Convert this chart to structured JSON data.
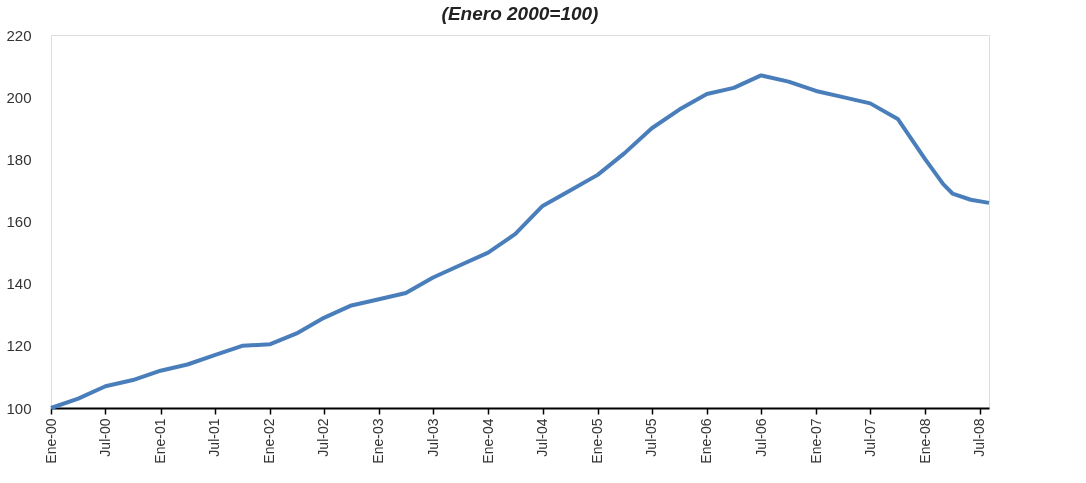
{
  "chart_data": {
    "type": "line",
    "title": "(Enero 2000=100)",
    "x": [
      "2000-01",
      "2000-04",
      "2000-07",
      "2000-10",
      "2001-01",
      "2001-04",
      "2001-07",
      "2001-10",
      "2002-01",
      "2002-04",
      "2002-07",
      "2002-10",
      "2003-01",
      "2003-04",
      "2003-07",
      "2003-10",
      "2004-01",
      "2004-04",
      "2004-07",
      "2004-10",
      "2005-01",
      "2005-04",
      "2005-07",
      "2005-10",
      "2006-01",
      "2006-04",
      "2006-07",
      "2006-10",
      "2007-01",
      "2007-04",
      "2007-07",
      "2007-10",
      "2008-01",
      "2008-03",
      "2008-04",
      "2008-06",
      "2008-08"
    ],
    "series": [
      {
        "color": "#4a7ebb",
        "values": [
          100,
          103,
          107,
          109,
          112,
          114,
          117,
          120,
          120.5,
          124,
          129,
          133,
          135,
          137,
          142,
          146,
          150,
          156,
          165,
          170,
          175,
          182,
          190,
          196,
          201,
          203,
          207,
          205,
          202,
          200,
          198,
          193,
          180,
          172,
          169,
          167,
          166
        ]
      }
    ],
    "xlim": [
      "2000-01",
      "2008-08"
    ],
    "xticks": [
      {
        "value": "2000-01",
        "label": "Ene-00"
      },
      {
        "value": "2000-07",
        "label": "Jul-00"
      },
      {
        "value": "2001-01",
        "label": "Ene-01"
      },
      {
        "value": "2001-07",
        "label": "Jul-01"
      },
      {
        "value": "2002-01",
        "label": "Ene-02"
      },
      {
        "value": "2002-07",
        "label": "Jul-02"
      },
      {
        "value": "2003-01",
        "label": "Ene-03"
      },
      {
        "value": "2003-07",
        "label": "Jul-03"
      },
      {
        "value": "2004-01",
        "label": "Ene-04"
      },
      {
        "value": "2004-07",
        "label": "Jul-04"
      },
      {
        "value": "2005-01",
        "label": "Ene-05"
      },
      {
        "value": "2005-07",
        "label": "Jul-05"
      },
      {
        "value": "2006-01",
        "label": "Ene-06"
      },
      {
        "value": "2006-07",
        "label": "Jul-06"
      },
      {
        "value": "2007-01",
        "label": "Ene-07"
      },
      {
        "value": "2007-07",
        "label": "Jul-07"
      },
      {
        "value": "2008-01",
        "label": "Ene-08"
      },
      {
        "value": "2008-07",
        "label": "Jul-08"
      }
    ],
    "ylim": [
      100,
      220
    ],
    "yticks": [
      100,
      120,
      140,
      160,
      180,
      200,
      220
    ],
    "grid": false,
    "legend": false,
    "marker": "none",
    "line_style": "solid"
  }
}
